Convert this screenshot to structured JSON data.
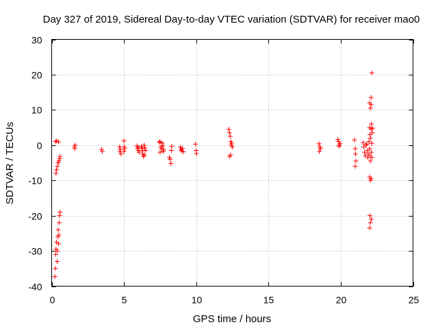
{
  "chart_data": {
    "type": "scatter",
    "title": "Day 327 of 2019, Sidereal Day-to-day VTEC variation (SDTVAR) for receiver mao0",
    "xlabel": "GPS time / hours",
    "ylabel": "SDTVAR / TECUs",
    "xlim": [
      0,
      25
    ],
    "ylim": [
      -40,
      30
    ],
    "xticks": [
      0,
      5,
      10,
      15,
      20,
      25
    ],
    "yticks": [
      -40,
      -30,
      -20,
      -10,
      0,
      10,
      20,
      30
    ],
    "grid": true,
    "marker": "+",
    "color": "#ff0000",
    "series": [
      {
        "name": "SDTVAR",
        "points": [
          [
            0.22,
            -37.3
          ],
          [
            0.25,
            -35.0
          ],
          [
            0.28,
            -31.0
          ],
          [
            0.3,
            -29.5
          ],
          [
            0.33,
            -27.5
          ],
          [
            0.3,
            -8.0
          ],
          [
            0.33,
            -7.0
          ],
          [
            0.27,
            1.0
          ],
          [
            0.35,
            1.2
          ],
          [
            0.38,
            -33.0
          ],
          [
            0.4,
            -30.0
          ],
          [
            0.42,
            -26.0
          ],
          [
            0.45,
            -24.0
          ],
          [
            0.4,
            -6.0
          ],
          [
            0.45,
            -5.0
          ],
          [
            0.48,
            0.9
          ],
          [
            0.48,
            -28.0
          ],
          [
            0.5,
            -25.5
          ],
          [
            0.52,
            -22.0
          ],
          [
            0.55,
            -20.0
          ],
          [
            0.58,
            -19.0
          ],
          [
            0.5,
            -4.5
          ],
          [
            0.55,
            -3.8
          ],
          [
            0.58,
            -3.2
          ],
          [
            1.6,
            -1.0
          ],
          [
            1.62,
            0.0
          ],
          [
            1.58,
            -0.5
          ],
          [
            3.45,
            -1.2
          ],
          [
            3.5,
            -1.8
          ],
          [
            4.7,
            -0.5
          ],
          [
            4.75,
            -1.2
          ],
          [
            4.8,
            -2.5
          ],
          [
            4.72,
            -1.8
          ],
          [
            5.0,
            1.2
          ],
          [
            5.02,
            -0.5
          ],
          [
            5.05,
            -1.0
          ],
          [
            5.0,
            -1.8
          ],
          [
            5.9,
            -0.2
          ],
          [
            5.95,
            -1.0
          ],
          [
            6.0,
            -1.5
          ],
          [
            6.05,
            -2.0
          ],
          [
            5.98,
            -0.6
          ],
          [
            6.2,
            -0.4
          ],
          [
            6.25,
            -1.0
          ],
          [
            6.3,
            -2.5
          ],
          [
            6.35,
            -3.2
          ],
          [
            6.28,
            -1.6
          ],
          [
            6.4,
            0.0
          ],
          [
            6.45,
            -0.8
          ],
          [
            6.5,
            -1.5
          ],
          [
            6.42,
            -2.8
          ],
          [
            7.45,
            0.8
          ],
          [
            7.5,
            1.0
          ],
          [
            7.55,
            -0.5
          ],
          [
            7.6,
            -1.0
          ],
          [
            7.5,
            -2.0
          ],
          [
            7.65,
            0.6
          ],
          [
            7.7,
            -0.2
          ],
          [
            7.75,
            -1.3
          ],
          [
            7.72,
            -1.8
          ],
          [
            8.15,
            -3.5
          ],
          [
            8.2,
            -4.0
          ],
          [
            8.25,
            -5.2
          ],
          [
            8.3,
            -0.3
          ],
          [
            8.28,
            -1.5
          ],
          [
            8.9,
            -0.6
          ],
          [
            8.95,
            -1.3
          ],
          [
            9.0,
            -1.6
          ],
          [
            9.05,
            -0.9
          ],
          [
            9.1,
            -1.9
          ],
          [
            9.95,
            0.3
          ],
          [
            10.0,
            -1.5
          ],
          [
            10.02,
            -2.4
          ],
          [
            12.25,
            4.5
          ],
          [
            12.3,
            3.5
          ],
          [
            12.35,
            2.5
          ],
          [
            12.4,
            1.0
          ],
          [
            12.45,
            0.5
          ],
          [
            12.5,
            -0.5
          ],
          [
            12.42,
            0.0
          ],
          [
            12.38,
            -2.8
          ],
          [
            12.3,
            -3.2
          ],
          [
            18.5,
            0.4
          ],
          [
            18.55,
            -0.5
          ],
          [
            18.6,
            -1.0
          ],
          [
            18.52,
            -1.8
          ],
          [
            19.8,
            1.6
          ],
          [
            19.85,
            1.0
          ],
          [
            19.9,
            0.0
          ],
          [
            19.95,
            0.5
          ],
          [
            19.88,
            -0.3
          ],
          [
            20.95,
            1.5
          ],
          [
            21.0,
            -1.0
          ],
          [
            21.02,
            -2.5
          ],
          [
            21.05,
            -4.5
          ],
          [
            21.0,
            -6.0
          ],
          [
            21.55,
            0.7
          ],
          [
            21.6,
            -0.5
          ],
          [
            21.65,
            -2.0
          ],
          [
            21.7,
            -3.0
          ],
          [
            21.75,
            0.0
          ],
          [
            21.8,
            0.3
          ],
          [
            21.85,
            -1.5
          ],
          [
            21.9,
            -2.5
          ],
          [
            21.88,
            -3.5
          ],
          [
            21.95,
            1.0
          ],
          [
            22.0,
            12.0
          ],
          [
            22.05,
            10.5
          ],
          [
            22.0,
            5.0
          ],
          [
            22.02,
            3.0
          ],
          [
            22.05,
            2.0
          ],
          [
            22.0,
            -1.0
          ],
          [
            22.02,
            -3.0
          ],
          [
            22.05,
            -4.5
          ],
          [
            22.0,
            -9.0
          ],
          [
            22.05,
            -10.0
          ],
          [
            22.02,
            -20.0
          ],
          [
            22.05,
            -22.0
          ],
          [
            22.0,
            -23.5
          ],
          [
            22.1,
            13.5
          ],
          [
            22.1,
            11.5
          ],
          [
            22.12,
            6.0
          ],
          [
            22.1,
            4.5
          ],
          [
            22.15,
            0.5
          ],
          [
            22.12,
            -2.0
          ],
          [
            22.1,
            -9.5
          ],
          [
            22.12,
            -21.0
          ],
          [
            22.15,
            20.5
          ],
          [
            22.2,
            4.8
          ],
          [
            22.18,
            3.5
          ],
          [
            22.15,
            -3.5
          ]
        ]
      }
    ]
  }
}
